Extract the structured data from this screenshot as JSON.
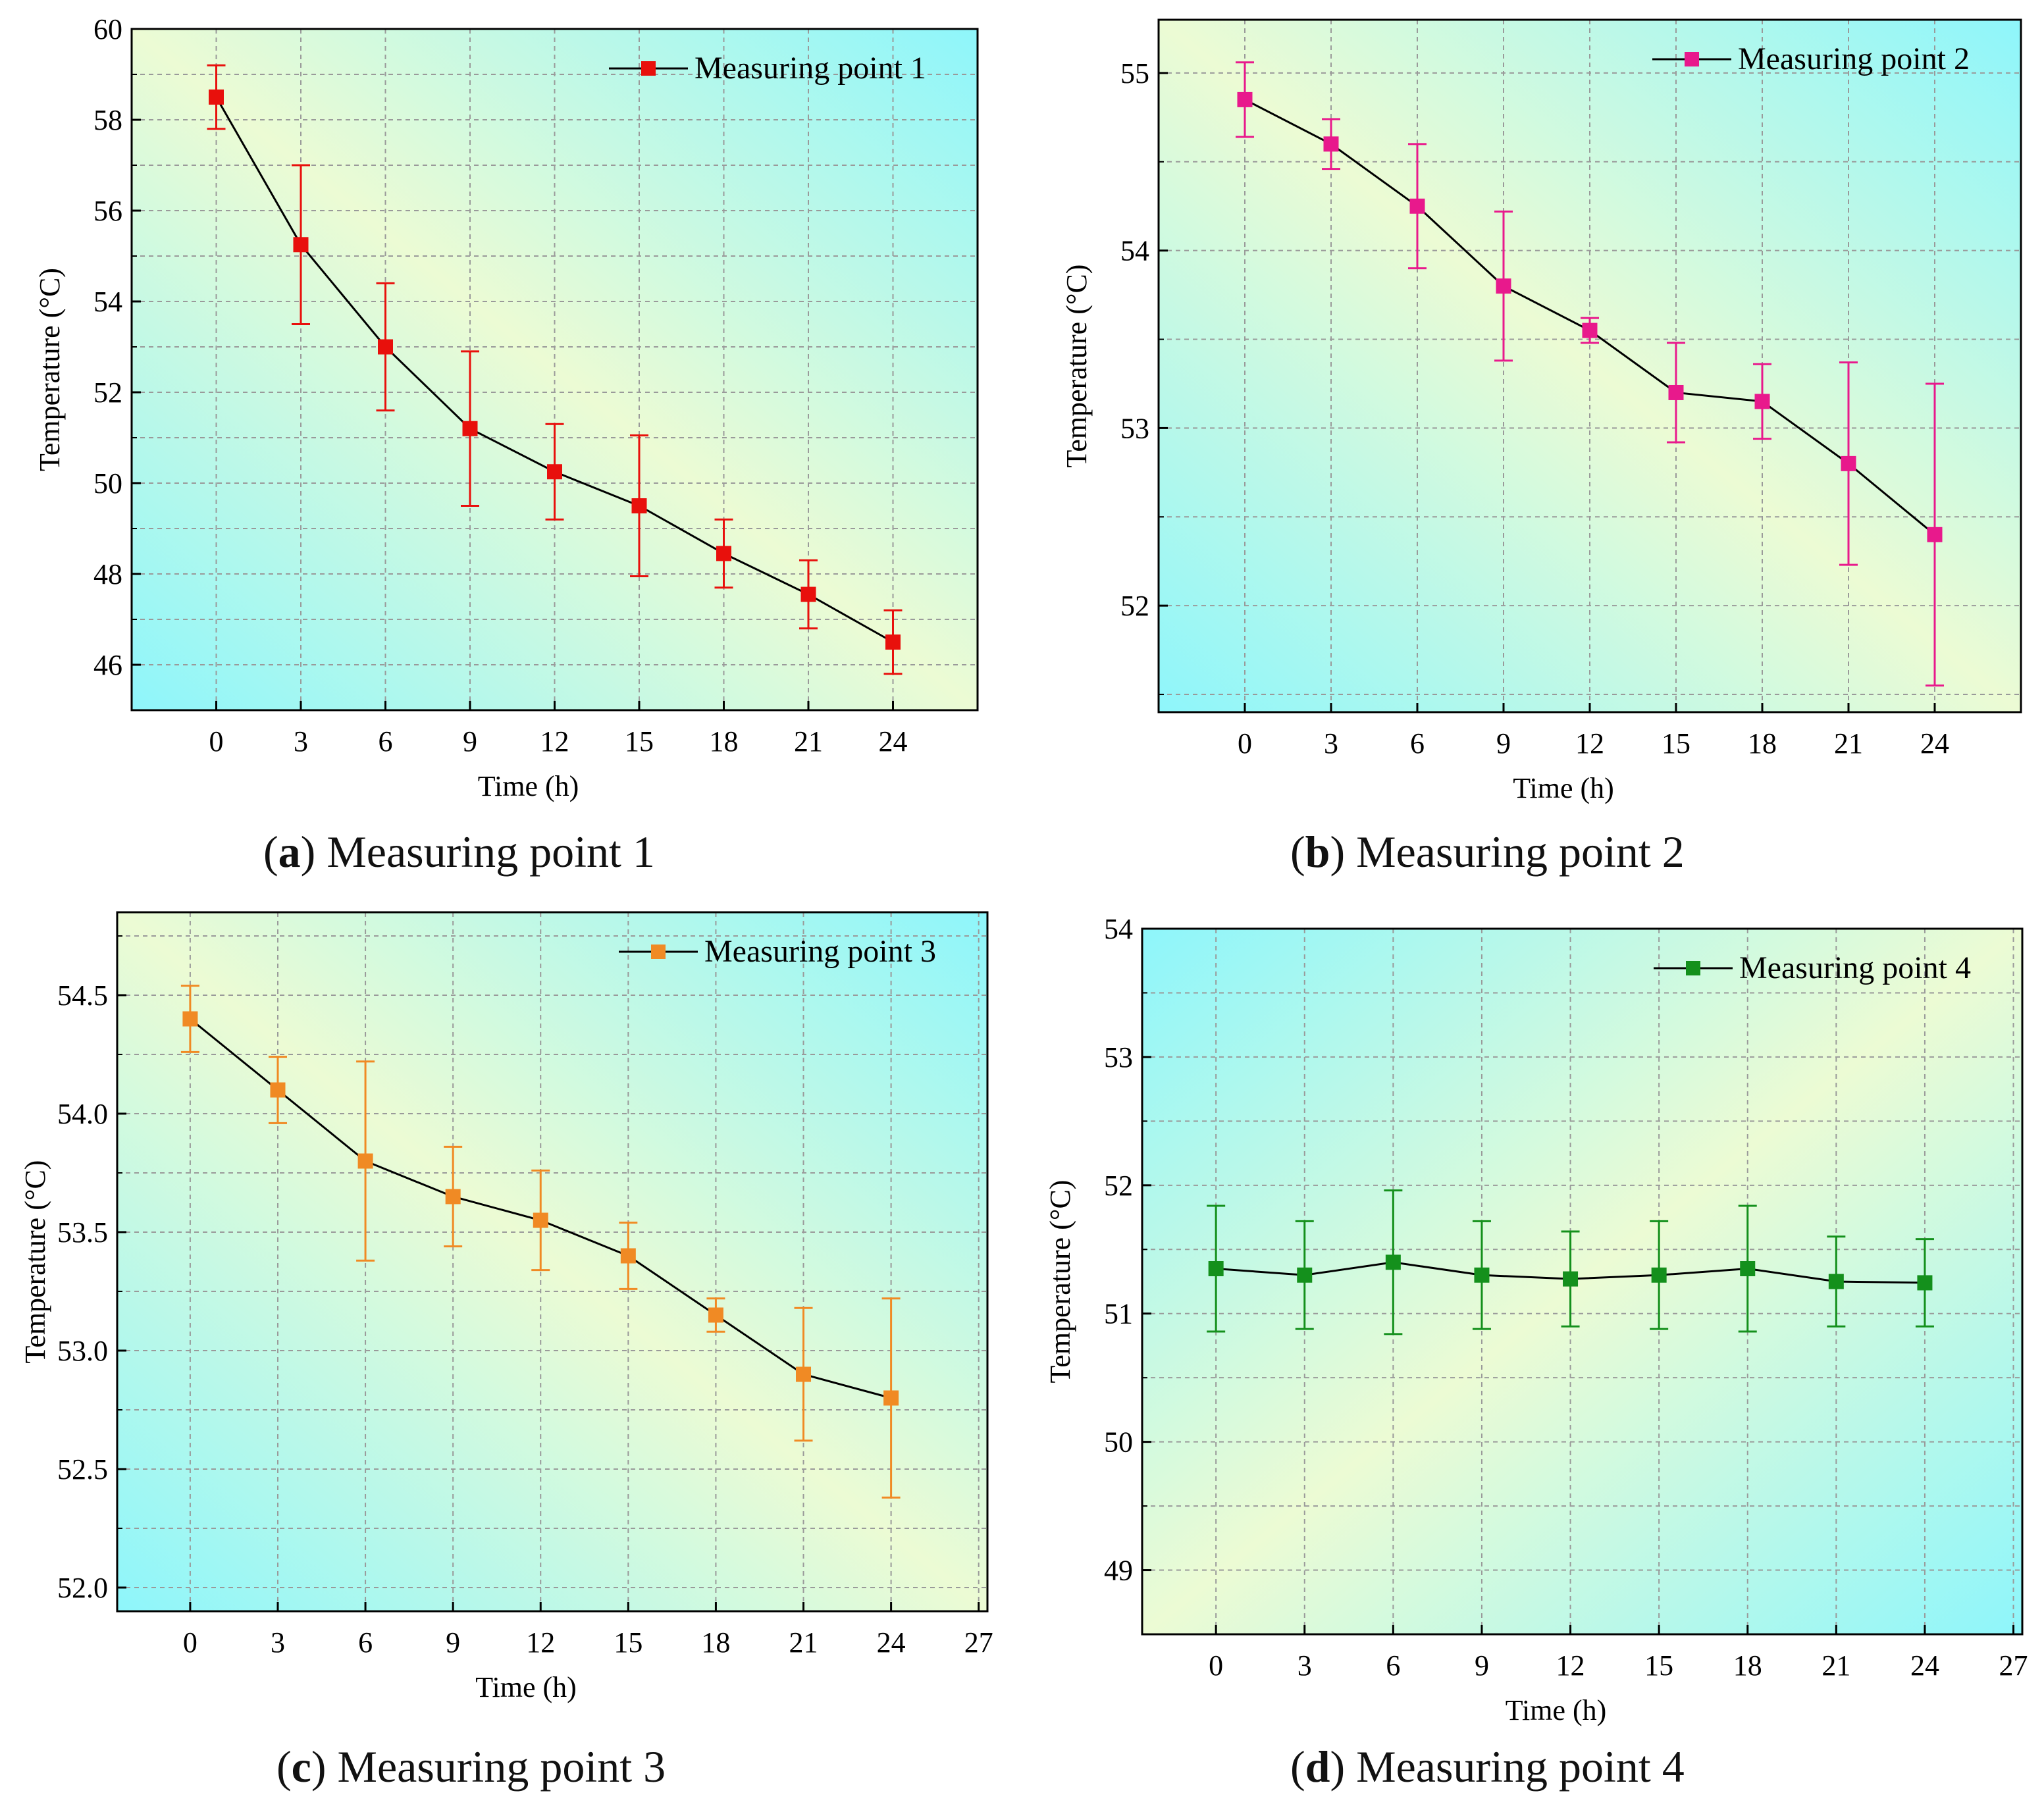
{
  "chart_data": [
    {
      "type": "line",
      "caption_letter": "a",
      "caption_text": "Measuring point 1",
      "xlabel": "Time (h)",
      "ylabel": "Temperature (°C)",
      "x": [
        0,
        3,
        6,
        9,
        12,
        15,
        18,
        21,
        24
      ],
      "xticks": [
        "0",
        "3",
        "6",
        "9",
        "12",
        "15",
        "18",
        "21",
        "24"
      ],
      "xlim": [
        -3,
        27
      ],
      "ylim": [
        45,
        60
      ],
      "yticks": [
        "46",
        "48",
        "50",
        "52",
        "54",
        "56",
        "58",
        "60"
      ],
      "ytick_values": [
        46,
        48,
        50,
        52,
        54,
        56,
        58,
        60
      ],
      "grid": true,
      "legend_position": "top-right",
      "series": [
        {
          "name": "Measuring point 1",
          "color": "#e8100c",
          "values": [
            58.5,
            55.25,
            53.0,
            51.2,
            50.25,
            49.5,
            48.45,
            47.55,
            46.5
          ],
          "err_low": [
            57.8,
            53.5,
            51.6,
            49.5,
            49.2,
            47.95,
            47.7,
            46.8,
            45.8
          ],
          "err_high": [
            59.2,
            57.0,
            54.4,
            52.9,
            51.3,
            51.05,
            49.2,
            48.3,
            47.2
          ]
        }
      ]
    },
    {
      "type": "line",
      "caption_letter": "b",
      "caption_text": "Measuring point 2",
      "xlabel": "Time (h)",
      "ylabel": "Temperature (°C)",
      "x": [
        0,
        3,
        6,
        9,
        12,
        15,
        18,
        21,
        24
      ],
      "xticks": [
        "0",
        "3",
        "6",
        "9",
        "12",
        "15",
        "18",
        "21",
        "24"
      ],
      "xlim": [
        -3,
        27
      ],
      "ylim": [
        51.4,
        55.3
      ],
      "yticks": [
        "52",
        "53",
        "54",
        "55"
      ],
      "ytick_values": [
        52,
        53,
        54,
        55
      ],
      "grid": true,
      "legend_position": "top-right",
      "series": [
        {
          "name": "Measuring point 2",
          "color": "#e8198c",
          "values": [
            54.85,
            54.6,
            54.25,
            53.8,
            53.55,
            53.2,
            53.15,
            52.8,
            52.4
          ],
          "err_low": [
            54.64,
            54.46,
            53.9,
            53.38,
            53.48,
            52.92,
            52.94,
            52.23,
            51.55
          ],
          "err_high": [
            55.06,
            54.74,
            54.6,
            54.22,
            53.62,
            53.48,
            53.36,
            53.37,
            53.25
          ]
        }
      ]
    },
    {
      "type": "line",
      "caption_letter": "c",
      "caption_text": "Measuring point 3",
      "xlabel": "Time (h)",
      "ylabel": "Temperature (°C)",
      "x": [
        0,
        3,
        6,
        9,
        12,
        15,
        18,
        21,
        24
      ],
      "xticks": [
        "0",
        "3",
        "6",
        "9",
        "12",
        "15",
        "18",
        "21",
        "24",
        "27"
      ],
      "xtick_values": [
        0,
        3,
        6,
        9,
        12,
        15,
        18,
        21,
        24,
        27
      ],
      "xlim": [
        -2.5,
        27.3
      ],
      "ylim": [
        51.9,
        54.85
      ],
      "yticks": [
        "52.0",
        "52.5",
        "53.0",
        "53.5",
        "54.0",
        "54.5"
      ],
      "ytick_values": [
        52.0,
        52.5,
        53.0,
        53.5,
        54.0,
        54.5
      ],
      "grid": true,
      "legend_position": "top-right",
      "series": [
        {
          "name": "Measuring point 3",
          "color": "#f08a24",
          "values": [
            54.4,
            54.1,
            53.8,
            53.65,
            53.55,
            53.4,
            53.15,
            52.9,
            52.8
          ],
          "err_low": [
            54.26,
            53.96,
            53.38,
            53.44,
            53.34,
            53.26,
            53.08,
            52.62,
            52.38
          ],
          "err_high": [
            54.54,
            54.24,
            54.22,
            53.86,
            53.76,
            53.54,
            53.22,
            53.18,
            53.22
          ]
        }
      ]
    },
    {
      "type": "line",
      "caption_letter": "d",
      "caption_text": "Measuring point 4",
      "xlabel": "Time (h)",
      "ylabel": "Temperature (°C)",
      "x": [
        0,
        3,
        6,
        9,
        12,
        15,
        18,
        21,
        24
      ],
      "xticks": [
        "0",
        "3",
        "6",
        "9",
        "12",
        "15",
        "18",
        "21",
        "24",
        "27"
      ],
      "xtick_values": [
        0,
        3,
        6,
        9,
        12,
        15,
        18,
        21,
        24,
        27
      ],
      "xlim": [
        -2.5,
        27.3
      ],
      "ylim": [
        48.5,
        54
      ],
      "yticks": [
        "49",
        "50",
        "51",
        "52",
        "53",
        "54"
      ],
      "ytick_values": [
        49,
        50,
        51,
        52,
        53,
        54
      ],
      "grid": true,
      "legend_position": "top-right",
      "series": [
        {
          "name": "Measuring point 4",
          "color": "#14901c",
          "values": [
            51.35,
            51.3,
            51.4,
            51.3,
            51.27,
            51.3,
            51.35,
            51.25,
            51.24
          ],
          "err_low": [
            50.86,
            50.88,
            50.84,
            50.88,
            50.9,
            50.88,
            50.86,
            50.9,
            50.9
          ],
          "err_high": [
            51.84,
            51.72,
            51.96,
            51.72,
            51.64,
            51.72,
            51.84,
            51.6,
            51.58
          ]
        }
      ]
    }
  ]
}
